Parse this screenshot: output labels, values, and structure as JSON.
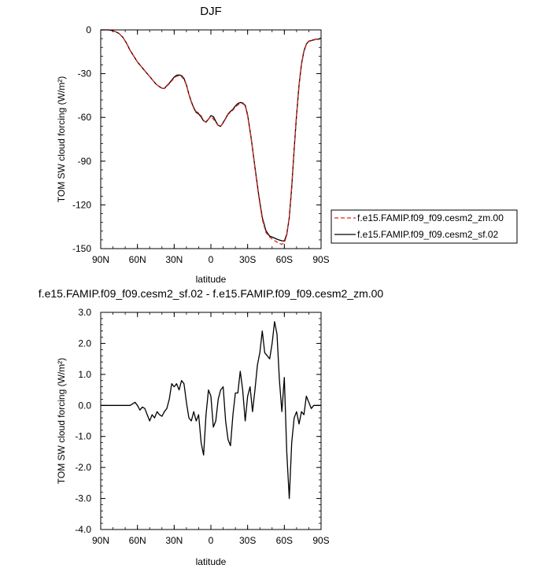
{
  "chart_data": [
    {
      "type": "line",
      "title": "DJF",
      "xlabel": "latitude",
      "ylabel": "TOM SW cloud forcing (W/m²)",
      "xlim": [
        90,
        -90
      ],
      "ylim": [
        -150,
        0
      ],
      "xticks": [
        90,
        60,
        30,
        0,
        -30,
        -60,
        -90
      ],
      "xtick_labels": [
        "90N",
        "60N",
        "30N",
        "0",
        "30S",
        "60S",
        "90S"
      ],
      "yticks": [
        0,
        -30,
        -60,
        -90,
        -120,
        -150
      ],
      "ytick_labels": [
        "0",
        "-30",
        "-60",
        "-90",
        "-120",
        "-150"
      ],
      "legend_position": "right",
      "series": [
        {
          "name": "f.e15.FAMIP.f09_f09.cesm2_zm.00",
          "color": "#e8201c",
          "dash": "dashed",
          "x": [
            90,
            87,
            84,
            81,
            78,
            75,
            72,
            69,
            66,
            63,
            60,
            57,
            54,
            51,
            48,
            45,
            42,
            40,
            38,
            36,
            34,
            32,
            30,
            28,
            26,
            24,
            22,
            20,
            18,
            16,
            14,
            12,
            10,
            8,
            6,
            4,
            2,
            0,
            -2,
            -4,
            -6,
            -8,
            -10,
            -12,
            -14,
            -16,
            -18,
            -20,
            -22,
            -24,
            -26,
            -28,
            -30,
            -33,
            -36,
            -39,
            -42,
            -45,
            -48,
            -51,
            -54,
            -56,
            -58,
            -60,
            -62,
            -64,
            -66,
            -68,
            -70,
            -72,
            -74,
            -76,
            -78,
            -80,
            -82,
            -84,
            -86,
            -88,
            -90
          ],
          "y": [
            0,
            0,
            0,
            -0.4,
            -1.2,
            -2.5,
            -5,
            -9,
            -14,
            -18,
            -22,
            -25,
            -28,
            -31,
            -34,
            -37,
            -39,
            -40,
            -40,
            -38.5,
            -37,
            -35,
            -33,
            -31.8,
            -31.5,
            -32,
            -34,
            -38,
            -44,
            -49,
            -53,
            -56,
            -57,
            -59,
            -62,
            -63.5,
            -61,
            -59.5,
            -61,
            -63.5,
            -65.5,
            -66,
            -64,
            -61,
            -58,
            -56.5,
            -55,
            -53,
            -51.5,
            -50.5,
            -50.5,
            -52,
            -59,
            -75,
            -95,
            -114,
            -130,
            -139,
            -142,
            -144,
            -145.5,
            -146.5,
            -147,
            -146,
            -141,
            -128,
            -107,
            -82,
            -58,
            -38,
            -24,
            -15,
            -10,
            -8,
            -7.5,
            -7,
            -6.5,
            -6,
            -5.5
          ]
        },
        {
          "name": "f.e15.FAMIP.f09_f09.cesm2_sf.02",
          "color": "#000000",
          "dash": "solid",
          "x": [
            90,
            87,
            84,
            81,
            78,
            75,
            72,
            69,
            66,
            63,
            60,
            57,
            54,
            51,
            48,
            45,
            42,
            40,
            38,
            36,
            34,
            32,
            30,
            28,
            26,
            24,
            22,
            20,
            18,
            16,
            14,
            12,
            10,
            8,
            6,
            4,
            2,
            0,
            -2,
            -4,
            -6,
            -8,
            -10,
            -12,
            -14,
            -16,
            -18,
            -20,
            -22,
            -24,
            -26,
            -28,
            -30,
            -33,
            -36,
            -39,
            -42,
            -45,
            -48,
            -51,
            -54,
            -56,
            -58,
            -60,
            -62,
            -64,
            -66,
            -68,
            -70,
            -72,
            -74,
            -76,
            -78,
            -80,
            -82,
            -84,
            -86,
            -88,
            -90
          ],
          "y": [
            0,
            0,
            0,
            -0.4,
            -1.2,
            -2.5,
            -5,
            -9,
            -14,
            -18,
            -22,
            -25,
            -28,
            -31,
            -34,
            -37,
            -39,
            -40,
            -40.2,
            -38.2,
            -36.6,
            -34.4,
            -32.4,
            -31.1,
            -30.9,
            -31.4,
            -33.3,
            -37.7,
            -44.1,
            -49.3,
            -53.5,
            -56.6,
            -57.6,
            -59.7,
            -62.4,
            -63.2,
            -61.3,
            -58.8,
            -59.4,
            -62.7,
            -65.4,
            -66.2,
            -63.5,
            -60.7,
            -57.6,
            -55.9,
            -54.4,
            -52.2,
            -50.5,
            -49.8,
            -50.1,
            -51.7,
            -58.4,
            -74.6,
            -94.2,
            -113,
            -128.7,
            -137.8,
            -141.4,
            -142.4,
            -143.5,
            -144.1,
            -144.6,
            -144.8,
            -140.2,
            -128.8,
            -108.2,
            -81.7,
            -58.2,
            -37.8,
            -23.4,
            -14.5,
            -9.7,
            -7.7,
            -7.3,
            -6.8,
            -6.3,
            -6.4,
            -5.6
          ]
        }
      ]
    },
    {
      "type": "line",
      "title": "f.e15.FAMIP.f09_f09.cesm2_sf.02 - f.e15.FAMIP.f09_f09.cesm2_zm.00",
      "xlabel": "latitude",
      "ylabel": "TOM SW cloud forcing (W/m²)",
      "xlim": [
        90,
        -90
      ],
      "ylim": [
        -4,
        3
      ],
      "xticks": [
        90,
        60,
        30,
        0,
        -30,
        -60,
        -90
      ],
      "xtick_labels": [
        "90N",
        "60N",
        "30N",
        "0",
        "30S",
        "60S",
        "90S"
      ],
      "yticks": [
        3,
        2,
        1,
        0,
        -1,
        -2,
        -3,
        -4
      ],
      "ytick_labels": [
        "3.0",
        "2.0",
        "1.0",
        "0.0",
        "-1.0",
        "-2.0",
        "-3.0",
        "-4.0"
      ],
      "series": [
        {
          "color": "#000000",
          "dash": "solid",
          "x": [
            90,
            80,
            70,
            66,
            64,
            62,
            60,
            58,
            56,
            54,
            52,
            50,
            48,
            46,
            44,
            42,
            40,
            38,
            36,
            34,
            32,
            30,
            28,
            26,
            24,
            22,
            20,
            18,
            16,
            14,
            12,
            10,
            8,
            6,
            4,
            2,
            0,
            -2,
            -4,
            -6,
            -8,
            -10,
            -12,
            -14,
            -16,
            -18,
            -20,
            -22,
            -24,
            -26,
            -28,
            -30,
            -32,
            -34,
            -36,
            -38,
            -40,
            -42,
            -44,
            -46,
            -48,
            -50,
            -52,
            -54,
            -56,
            -58,
            -60,
            -62,
            -64,
            -66,
            -68,
            -70,
            -72,
            -74,
            -76,
            -78,
            -80,
            -82,
            -84,
            -86,
            -88,
            -90
          ],
          "y": [
            0,
            0,
            0,
            0,
            0.05,
            0.1,
            0.0,
            -0.15,
            -0.05,
            -0.1,
            -0.3,
            -0.5,
            -0.3,
            -0.4,
            -0.2,
            -0.3,
            -0.35,
            -0.2,
            -0.1,
            0.2,
            0.7,
            0.6,
            0.7,
            0.5,
            0.8,
            0.7,
            0.1,
            -0.4,
            -0.5,
            -0.2,
            -0.5,
            -0.3,
            -1.2,
            -1.6,
            -0.3,
            0.5,
            0.3,
            -0.7,
            -0.5,
            0.2,
            0.5,
            0.6,
            -0.5,
            -1.1,
            -1.3,
            -0.3,
            0.4,
            0.4,
            1.1,
            0.5,
            -0.5,
            0.3,
            0.6,
            -0.2,
            0.5,
            1.3,
            1.7,
            2.4,
            1.7,
            1.6,
            1.5,
            2.0,
            2.7,
            2.3,
            0.8,
            -0.2,
            0.9,
            -1.5,
            -3.0,
            -1.2,
            -0.4,
            -0.2,
            -0.6,
            -0.2,
            -0.3,
            0.3,
            0.1,
            -0.1,
            0.0,
            0.0,
            0.0,
            0.0
          ]
        }
      ]
    }
  ],
  "legend": {
    "entries": [
      {
        "label": "f.e15.FAMIP.f09_f09.cesm2_zm.00",
        "color": "#e8201c",
        "dash": "dashed"
      },
      {
        "label": "f.e15.FAMIP.f09_f09.cesm2_sf.02",
        "color": "#000000",
        "dash": "solid"
      }
    ]
  }
}
